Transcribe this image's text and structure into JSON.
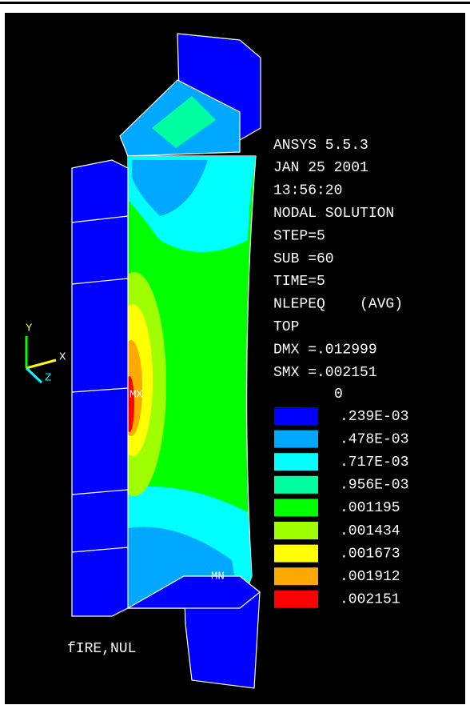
{
  "header": {
    "lines": [
      "ANSYS 5.5.3",
      "JAN 25 2001",
      "13:56:20",
      "NODAL SOLUTION",
      "STEP=5",
      "SUB =60",
      "TIME=5",
      "NLEPEQ    (AVG)",
      "TOP",
      "DMX =.012999",
      "SMX =.002151"
    ]
  },
  "legend": {
    "zero": "0",
    "items": [
      {
        "label": ".239E-03",
        "color": "#0000ff"
      },
      {
        "label": ".478E-03",
        "color": "#00a8ff"
      },
      {
        "label": ".717E-03",
        "color": "#00ffff"
      },
      {
        "label": ".956E-03",
        "color": "#00ffa0"
      },
      {
        "label": ".001195",
        "color": "#00ff00"
      },
      {
        "label": ".001434",
        "color": "#a0ff00"
      },
      {
        "label": ".001673",
        "color": "#ffff00"
      },
      {
        "label": ".001912",
        "color": "#ffa800"
      },
      {
        "label": ".002151",
        "color": "#ff0000"
      }
    ]
  },
  "triad": {
    "y": "Y",
    "x": "X",
    "z": "Z"
  },
  "markers": {
    "max": "MX",
    "min": "MN"
  },
  "footer": "fIRE,NUL"
}
